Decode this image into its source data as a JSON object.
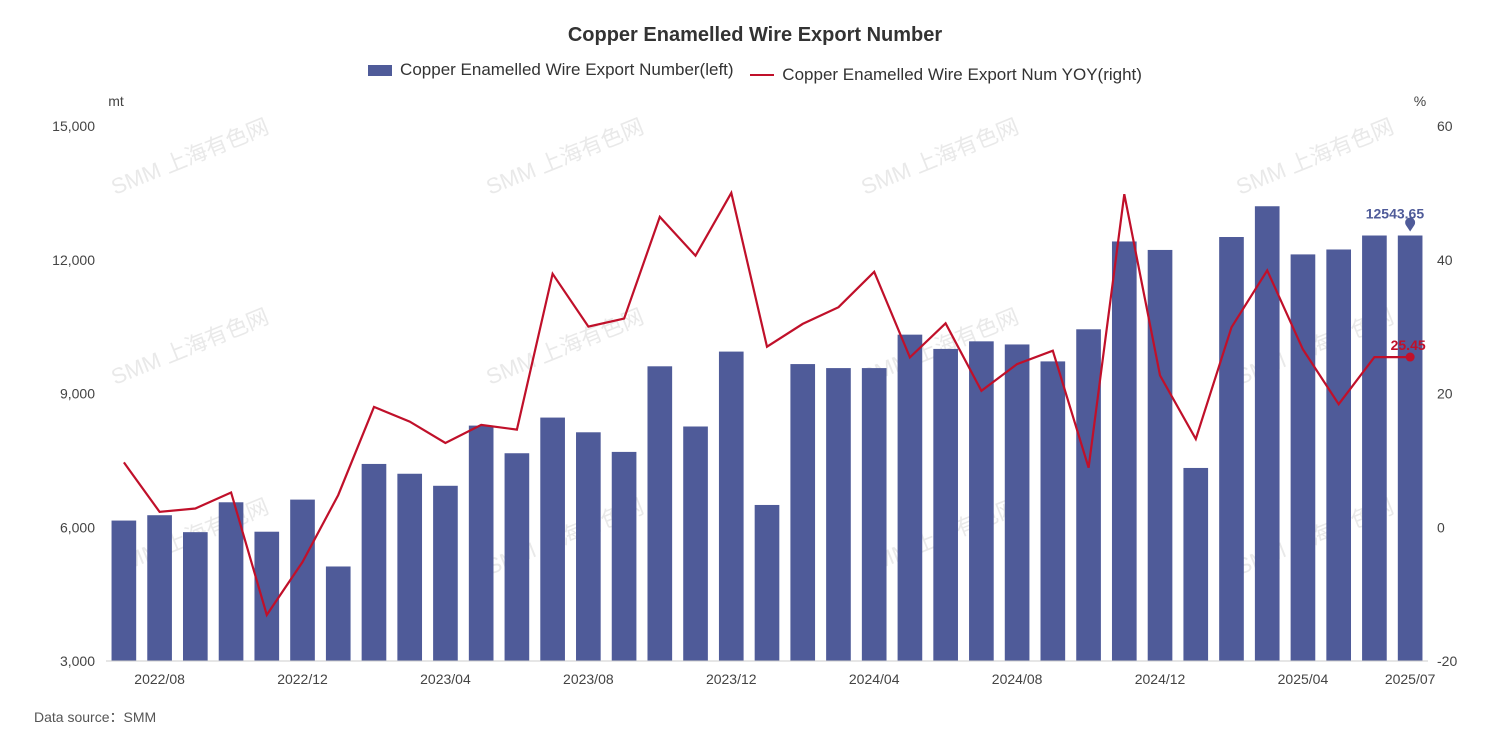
{
  "chart_data": {
    "type": "bar",
    "title": "Copper Enamelled Wire Export Number",
    "source": "Data source：SMM",
    "watermark": "SMM 上海有色网",
    "left_unit": "mt",
    "right_unit": "%",
    "ylim_left": [
      3000,
      15000
    ],
    "ylim_right": [
      -20,
      60
    ],
    "left_ticks": [
      "15,000",
      "12,000",
      "9,000",
      "6,000",
      "3,000"
    ],
    "right_ticks": [
      "60",
      "40",
      "20",
      "0",
      "-20"
    ],
    "categories": [
      "2022/07",
      "2022/08",
      "2022/09",
      "2022/10",
      "2022/11",
      "2022/12",
      "2023/01",
      "2023/02",
      "2023/03",
      "2023/04",
      "2023/05",
      "2023/06",
      "2023/07",
      "2023/08",
      "2023/09",
      "2023/10",
      "2023/11",
      "2023/12",
      "2024/01",
      "2024/02",
      "2024/03",
      "2024/04",
      "2024/05",
      "2024/06",
      "2024/07",
      "2024/08",
      "2024/09",
      "2024/10",
      "2024/11",
      "2024/12",
      "2025/01",
      "2025/02",
      "2025/03",
      "2025/04",
      "2025/05",
      "2025/06",
      "2025/07"
    ],
    "x_tick_labels": [
      "2022/08",
      "2022/12",
      "2023/04",
      "2023/08",
      "2023/12",
      "2024/04",
      "2024/08",
      "2024/12",
      "2025/04",
      "2025/07"
    ],
    "grid": false,
    "legend_position": "top",
    "series": [
      {
        "name": "Copper Enamelled Wire Export Number(left)",
        "type": "bar",
        "axis": "left",
        "color": "#4f5b99",
        "values": [
          6150,
          6270,
          5890,
          6560,
          5900,
          6620,
          5120,
          7420,
          7200,
          6930,
          8280,
          7660,
          8460,
          8130,
          7690,
          9610,
          8260,
          9940,
          6500,
          9660,
          9570,
          9570,
          10320,
          10000,
          10170,
          10100,
          9720,
          10440,
          12410,
          12220,
          7330,
          12510,
          13200,
          12120,
          12230,
          12543.65,
          12543.65
        ]
      },
      {
        "name": "Copper Enamelled Wire Export Num YOY(right)",
        "type": "line",
        "axis": "right",
        "color": "#c0102a",
        "values": [
          9.7,
          2.3,
          2.8,
          5.2,
          -13.1,
          -5.2,
          4.8,
          18.0,
          15.8,
          12.6,
          15.3,
          14.6,
          37.9,
          30.0,
          31.2,
          46.4,
          40.6,
          50.0,
          27.0,
          30.4,
          32.9,
          38.2,
          25.4,
          30.5,
          20.4,
          24.4,
          26.4,
          8.9,
          49.8,
          22.7,
          13.2,
          29.9,
          38.4,
          26.6,
          18.4,
          25.45,
          25.45
        ]
      }
    ],
    "annotations": [
      {
        "series": 0,
        "label": "12543.65"
      },
      {
        "series": 1,
        "label": "25.45"
      }
    ]
  }
}
